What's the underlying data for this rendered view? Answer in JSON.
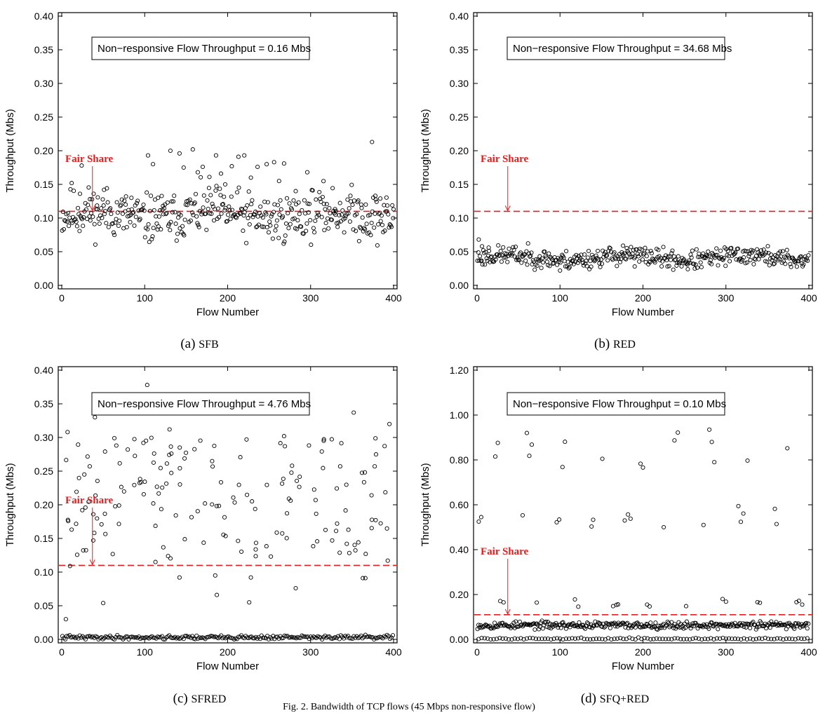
{
  "figure_caption": "Fig. 2.  Bandwidth of TCP flows (45 Mbps non-responsive flow)",
  "colors": {
    "fair_share": "#e02020",
    "points": "#000000"
  },
  "chart_data": [
    {
      "type": "scatter",
      "caption_prefix": "(a)",
      "caption_name": "SFB",
      "xlabel": "Flow Number",
      "ylabel": "Throughput (Mbs)",
      "xlim": [
        0,
        400
      ],
      "ylim": [
        0,
        0.4
      ],
      "xticks": [
        "0",
        "100",
        "200",
        "300",
        "400"
      ],
      "yticks": [
        "0.00",
        "0.05",
        "0.10",
        "0.15",
        "0.20",
        "0.25",
        "0.30",
        "0.35",
        "0.40"
      ],
      "annotation": "Non−responsive Flow Throughput =  0.16 Mbs",
      "fair_share_label": "Fair Share",
      "fair_share": 0.11,
      "fair_share_arrow_x": 37,
      "outliers": [
        [
          12,
          0.152
        ],
        [
          24,
          0.178
        ],
        [
          22,
          0.136
        ],
        [
          34,
          0.128
        ],
        [
          43,
          0.113
        ],
        [
          51,
          0.142
        ],
        [
          77,
          0.12
        ],
        [
          84,
          0.13
        ],
        [
          104,
          0.193
        ],
        [
          110,
          0.18
        ],
        [
          116,
          0.13
        ],
        [
          122,
          0.118
        ],
        [
          131,
          0.2
        ],
        [
          142,
          0.196
        ],
        [
          147,
          0.175
        ],
        [
          158,
          0.202
        ],
        [
          164,
          0.168
        ],
        [
          170,
          0.176
        ],
        [
          178,
          0.161
        ],
        [
          186,
          0.193
        ],
        [
          192,
          0.166
        ],
        [
          197,
          0.15
        ],
        [
          205,
          0.177
        ],
        [
          213,
          0.191
        ],
        [
          220,
          0.193
        ],
        [
          228,
          0.16
        ],
        [
          236,
          0.176
        ],
        [
          247,
          0.18
        ],
        [
          256,
          0.183
        ],
        [
          262,
          0.155
        ],
        [
          268,
          0.181
        ],
        [
          282,
          0.14
        ],
        [
          296,
          0.168
        ],
        [
          316,
          0.121
        ],
        [
          330,
          0.105
        ],
        [
          348,
          0.133
        ],
        [
          361,
          0.12
        ],
        [
          374,
          0.213
        ],
        [
          378,
          0.133
        ],
        [
          384,
          0.129
        ],
        [
          392,
          0.11
        ],
        [
          400,
          0.113
        ]
      ],
      "series": [
        {
          "kind": "band",
          "count": 400,
          "mean": 0.104,
          "spread": 0.018,
          "seed": 11,
          "wave": 0.006
        }
      ]
    },
    {
      "type": "scatter",
      "caption_prefix": "(b)",
      "caption_name": "RED",
      "xlabel": "Flow Number",
      "ylabel": "Throughput (Mbs)",
      "xlim": [
        0,
        400
      ],
      "ylim": [
        0,
        0.4
      ],
      "xticks": [
        "0",
        "100",
        "200",
        "300",
        "400"
      ],
      "yticks": [
        "0.00",
        "0.05",
        "0.10",
        "0.15",
        "0.20",
        "0.25",
        "0.30",
        "0.35",
        "0.40"
      ],
      "annotation": "Non−responsive Flow Throughput = 34.68 Mbs",
      "fair_share_label": "Fair Share",
      "fair_share": 0.11,
      "fair_share_arrow_x": 37,
      "outliers": [
        [
          2,
          0.068
        ],
        [
          6,
          0.058
        ],
        [
          14,
          0.056
        ],
        [
          176,
          0.059
        ],
        [
          100,
          0.022
        ],
        [
          254,
          0.024
        ],
        [
          190,
          0.028
        ]
      ],
      "series": [
        {
          "kind": "band",
          "count": 400,
          "mean": 0.041,
          "spread": 0.007,
          "seed": 23,
          "wave": 0.004
        }
      ]
    },
    {
      "type": "scatter",
      "caption_prefix": "(c)",
      "caption_name": "SFRED",
      "xlabel": "Flow Number",
      "ylabel": "Throughput (Mbs)",
      "xlim": [
        0,
        400
      ],
      "ylim": [
        0,
        0.4
      ],
      "xticks": [
        "0",
        "100",
        "200",
        "300",
        "400"
      ],
      "yticks": [
        "0.00",
        "0.05",
        "0.10",
        "0.15",
        "0.20",
        "0.25",
        "0.30",
        "0.35",
        "0.40"
      ],
      "annotation": "Non−responsive Flow Throughput = 4.76 Mbs",
      "fair_share_label": "Fair Share",
      "fair_share": 0.11,
      "fair_share_arrow_x": 37,
      "outliers": [
        [
          5,
          0.03
        ],
        [
          7,
          0.308
        ],
        [
          10,
          0.109
        ],
        [
          38,
          0.147
        ],
        [
          40,
          0.33
        ],
        [
          50,
          0.054
        ],
        [
          88,
          0.364
        ],
        [
          103,
          0.378
        ],
        [
          113,
          0.115
        ],
        [
          130,
          0.312
        ],
        [
          142,
          0.092
        ],
        [
          185,
          0.095
        ],
        [
          187,
          0.066
        ],
        [
          226,
          0.055
        ],
        [
          228,
          0.092
        ],
        [
          268,
          0.302
        ],
        [
          269,
          0.287
        ],
        [
          282,
          0.076
        ],
        [
          352,
          0.337
        ],
        [
          363,
          0.091
        ],
        [
          366,
          0.091
        ],
        [
          395,
          0.32
        ],
        [
          393,
          0.117
        ]
      ],
      "series": [
        {
          "kind": "scatter",
          "count": 160,
          "min": 0.12,
          "max": 0.3,
          "seed": 37
        },
        {
          "kind": "band",
          "count": 230,
          "mean": 0.003,
          "spread": 0.0015,
          "seed": 41,
          "wave": 0
        }
      ]
    },
    {
      "type": "scatter",
      "caption_prefix": "(d)",
      "caption_name": "SFQ+RED",
      "xlabel": "Flow Number",
      "ylabel": "Throughput (Mbs)",
      "xlim": [
        0,
        400
      ],
      "ylim": [
        0,
        1.2
      ],
      "xticks": [
        "0",
        "100",
        "200",
        "300",
        "400"
      ],
      "yticks": [
        "0.00",
        "0.20",
        "0.40",
        "0.60",
        "0.80",
        "1.00",
        "1.20"
      ],
      "annotation": "Non−responsive Flow Throughput =  0.10 Mbs",
      "fair_share_label": "Fair Share",
      "fair_share": 0.11,
      "fair_share_arrow_x": 37,
      "outliers": [
        [
          2,
          0.525
        ],
        [
          5,
          0.545
        ],
        [
          22,
          0.815
        ],
        [
          25,
          0.876
        ],
        [
          28,
          0.171
        ],
        [
          32,
          0.165
        ],
        [
          55,
          0.553
        ],
        [
          60,
          0.92
        ],
        [
          63,
          0.818
        ],
        [
          66,
          0.868
        ],
        [
          72,
          0.164
        ],
        [
          96,
          0.522
        ],
        [
          99,
          0.534
        ],
        [
          103,
          0.768
        ],
        [
          106,
          0.881
        ],
        [
          118,
          0.178
        ],
        [
          122,
          0.146
        ],
        [
          138,
          0.503
        ],
        [
          140,
          0.533
        ],
        [
          151,
          0.805
        ],
        [
          164,
          0.148
        ],
        [
          168,
          0.154
        ],
        [
          170,
          0.156
        ],
        [
          178,
          0.53
        ],
        [
          182,
          0.557
        ],
        [
          185,
          0.538
        ],
        [
          197,
          0.783
        ],
        [
          200,
          0.766
        ],
        [
          205,
          0.155
        ],
        [
          208,
          0.147
        ],
        [
          225,
          0.5
        ],
        [
          238,
          0.887
        ],
        [
          242,
          0.922
        ],
        [
          252,
          0.148
        ],
        [
          273,
          0.51
        ],
        [
          280,
          0.935
        ],
        [
          283,
          0.88
        ],
        [
          286,
          0.79
        ],
        [
          296,
          0.18
        ],
        [
          300,
          0.168
        ],
        [
          315,
          0.594
        ],
        [
          318,
          0.524
        ],
        [
          321,
          0.561
        ],
        [
          326,
          0.797
        ],
        [
          338,
          0.166
        ],
        [
          341,
          0.163
        ],
        [
          359,
          0.582
        ],
        [
          361,
          0.514
        ],
        [
          374,
          0.852
        ],
        [
          385,
          0.166
        ],
        [
          388,
          0.172
        ],
        [
          392,
          0.155
        ]
      ],
      "series": [
        {
          "kind": "band",
          "count": 330,
          "mean": 0.063,
          "spread": 0.008,
          "seed": 53,
          "wave": 0
        },
        {
          "kind": "band",
          "count": 110,
          "mean": 0.003,
          "spread": 0.002,
          "seed": 59,
          "wave": 0
        }
      ]
    }
  ]
}
